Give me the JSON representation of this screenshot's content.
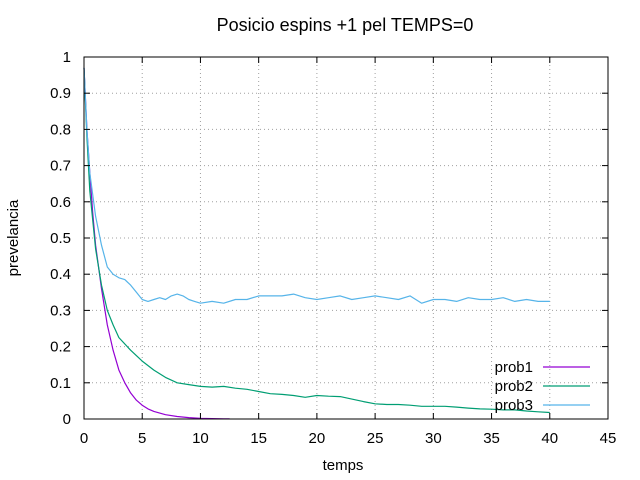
{
  "chart_data": {
    "type": "line",
    "title": "Posicio espins +1 pel TEMPS=0",
    "xlabel": "temps",
    "ylabel": "prevelancia",
    "xlim": [
      0,
      45
    ],
    "ylim": [
      0,
      1
    ],
    "xticks": [
      0,
      5,
      10,
      15,
      20,
      25,
      30,
      35,
      40,
      45
    ],
    "yticks": [
      0,
      0.1,
      0.2,
      0.3,
      0.4,
      0.5,
      0.6,
      0.7,
      0.8,
      0.9,
      1
    ],
    "grid": true,
    "legend_position": "bottom-right",
    "series": [
      {
        "name": "prob1",
        "color": "#9400d3",
        "x": [
          0,
          0.25,
          0.5,
          0.75,
          1,
          1.5,
          2,
          2.5,
          3,
          3.5,
          4,
          4.5,
          5,
          5.5,
          6,
          7,
          8,
          9,
          10,
          11,
          12,
          12.5
        ],
        "y": [
          0.97,
          0.8,
          0.68,
          0.57,
          0.48,
          0.36,
          0.26,
          0.19,
          0.135,
          0.1,
          0.072,
          0.052,
          0.038,
          0.028,
          0.021,
          0.012,
          0.007,
          0.004,
          0.002,
          0.001,
          0.0005,
          0.0003
        ]
      },
      {
        "name": "prob2",
        "color": "#009e73",
        "x": [
          0,
          0.25,
          0.5,
          1,
          1.5,
          2,
          2.5,
          3,
          4,
          5,
          6,
          7,
          8,
          9,
          10,
          11,
          12,
          13,
          14,
          15,
          16,
          17,
          18,
          19,
          20,
          21,
          22,
          23,
          24,
          25,
          26,
          27,
          28,
          29,
          30,
          31,
          32,
          33,
          34,
          35,
          36,
          37,
          38,
          39,
          40
        ],
        "y": [
          0.97,
          0.78,
          0.63,
          0.47,
          0.37,
          0.3,
          0.26,
          0.225,
          0.19,
          0.16,
          0.135,
          0.115,
          0.1,
          0.095,
          0.09,
          0.088,
          0.09,
          0.085,
          0.082,
          0.076,
          0.07,
          0.068,
          0.065,
          0.06,
          0.065,
          0.063,
          0.062,
          0.055,
          0.048,
          0.042,
          0.04,
          0.04,
          0.038,
          0.035,
          0.035,
          0.035,
          0.033,
          0.03,
          0.028,
          0.027,
          0.025,
          0.025,
          0.022,
          0.02,
          0.018
        ]
      },
      {
        "name": "prob3",
        "color": "#56b4e9",
        "x": [
          0,
          0.25,
          0.5,
          1,
          1.5,
          2,
          2.5,
          3,
          3.5,
          4,
          4.5,
          5,
          5.5,
          6,
          6.5,
          7,
          7.5,
          8,
          8.5,
          9,
          9.5,
          10,
          11,
          12,
          13,
          14,
          15,
          16,
          17,
          18,
          19,
          20,
          21,
          22,
          23,
          24,
          25,
          26,
          27,
          28,
          29,
          30,
          31,
          32,
          33,
          34,
          35,
          36,
          37,
          38,
          39,
          40
        ],
        "y": [
          0.97,
          0.8,
          0.68,
          0.56,
          0.48,
          0.42,
          0.4,
          0.39,
          0.385,
          0.37,
          0.35,
          0.33,
          0.325,
          0.33,
          0.335,
          0.33,
          0.34,
          0.345,
          0.34,
          0.33,
          0.325,
          0.32,
          0.325,
          0.32,
          0.33,
          0.33,
          0.34,
          0.34,
          0.34,
          0.345,
          0.335,
          0.33,
          0.335,
          0.34,
          0.33,
          0.335,
          0.34,
          0.335,
          0.33,
          0.34,
          0.32,
          0.33,
          0.33,
          0.325,
          0.335,
          0.33,
          0.33,
          0.335,
          0.325,
          0.33,
          0.325,
          0.325
        ]
      }
    ]
  }
}
